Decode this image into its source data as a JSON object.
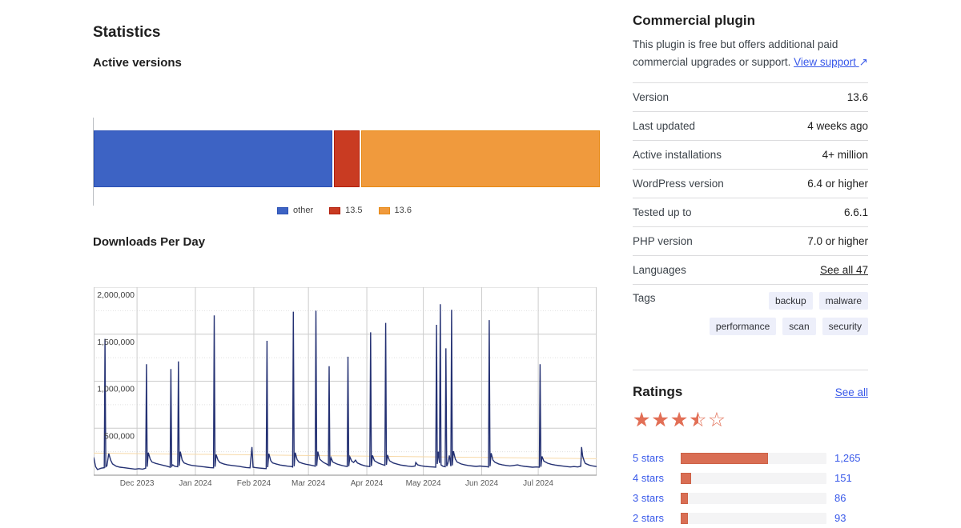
{
  "stats": {
    "title": "Statistics",
    "active_versions_title": "Active versions",
    "downloads_title": "Downloads Per Day"
  },
  "chart_data": [
    {
      "type": "bar",
      "variant": "stacked-horizontal",
      "title": "Active versions",
      "legend_position": "bottom-center",
      "segments": [
        {
          "label": "other",
          "percent": 47.5,
          "color": "#3d63c4",
          "border": "#2b51b4"
        },
        {
          "label": "13.5",
          "percent": 5.0,
          "color": "#c93b22",
          "border": "#b21e0b"
        },
        {
          "label": "13.6",
          "percent": 47.5,
          "color": "#f09a3d",
          "border": "#e78913"
        }
      ]
    },
    {
      "type": "line",
      "title": "Downloads Per Day",
      "ylim": [
        0,
        2000000
      ],
      "grid": true,
      "y_ticks": [
        {
          "value": 2000000,
          "label": "2,000,000"
        },
        {
          "value": 1500000,
          "label": "1,500,000"
        },
        {
          "value": 1000000,
          "label": "1,000,000"
        },
        {
          "value": 500000,
          "label": "500,000"
        }
      ],
      "y_minor_ticks": [
        250000,
        750000,
        1250000,
        1750000
      ],
      "x_domain_days": [
        0,
        267
      ],
      "x_ticks": [
        {
          "day": 23,
          "label": "Dec 2023"
        },
        {
          "day": 54,
          "label": "Jan 2024"
        },
        {
          "day": 85,
          "label": "Feb 2024"
        },
        {
          "day": 114,
          "label": "Mar 2024"
        },
        {
          "day": 145,
          "label": "Apr 2024"
        },
        {
          "day": 175,
          "label": "May 2024"
        },
        {
          "day": 206,
          "label": "Jun 2024"
        },
        {
          "day": 236,
          "label": "Jul 2024"
        }
      ],
      "series": [
        {
          "name": "downloads",
          "color": "#243173",
          "points": [
            [
              0,
              190000
            ],
            [
              1,
              90000
            ],
            [
              2,
              60000
            ],
            [
              4,
              75000
            ],
            [
              5.6,
              80000
            ],
            [
              6,
              1450000
            ],
            [
              6.4,
              90000
            ],
            [
              7,
              100000
            ],
            [
              8,
              230000
            ],
            [
              9,
              160000
            ],
            [
              10,
              120000
            ],
            [
              12,
              95000
            ],
            [
              14,
              85000
            ],
            [
              16,
              80000
            ],
            [
              18,
              75000
            ],
            [
              20,
              70000
            ],
            [
              22,
              65000
            ],
            [
              24,
              70000
            ],
            [
              26,
              65000
            ],
            [
              27.6,
              75000
            ],
            [
              28,
              1180000
            ],
            [
              28.4,
              90000
            ],
            [
              29,
              240000
            ],
            [
              30,
              170000
            ],
            [
              31,
              140000
            ],
            [
              33,
              125000
            ],
            [
              35,
              115000
            ],
            [
              37,
              105000
            ],
            [
              39,
              95000
            ],
            [
              40.6,
              85000
            ],
            [
              41,
              1130000
            ],
            [
              41.4,
              95000
            ],
            [
              42,
              110000
            ],
            [
              43,
              95000
            ],
            [
              44.6,
              90000
            ],
            [
              45,
              1210000
            ],
            [
              45.4,
              100000
            ],
            [
              46,
              250000
            ],
            [
              47,
              160000
            ],
            [
              48,
              130000
            ],
            [
              50,
              115000
            ],
            [
              52,
              105000
            ],
            [
              54,
              100000
            ],
            [
              56,
              95000
            ],
            [
              58,
              90000
            ],
            [
              60,
              85000
            ],
            [
              62,
              80000
            ],
            [
              63.6,
              78000
            ],
            [
              64,
              1700000
            ],
            [
              64.4,
              90000
            ],
            [
              65,
              220000
            ],
            [
              66,
              160000
            ],
            [
              67,
              135000
            ],
            [
              69,
              120000
            ],
            [
              71,
              110000
            ],
            [
              73,
              105000
            ],
            [
              75,
              100000
            ],
            [
              77,
              95000
            ],
            [
              79,
              88000
            ],
            [
              81,
              82000
            ],
            [
              83,
              78000
            ],
            [
              84,
              300000
            ],
            [
              84.6,
              85000
            ],
            [
              86,
              80000
            ],
            [
              88,
              76000
            ],
            [
              90,
              72000
            ],
            [
              91.6,
              70000
            ],
            [
              92,
              1430000
            ],
            [
              92.4,
              85000
            ],
            [
              93,
              230000
            ],
            [
              94,
              155000
            ],
            [
              95,
              130000
            ],
            [
              97,
              118000
            ],
            [
              99,
              108000
            ],
            [
              101,
              102000
            ],
            [
              103,
              96000
            ],
            [
              105,
              92000
            ],
            [
              105.6,
              88000
            ],
            [
              106,
              1740000
            ],
            [
              106.4,
              95000
            ],
            [
              107,
              240000
            ],
            [
              108,
              165000
            ],
            [
              109,
              140000
            ],
            [
              111,
              125000
            ],
            [
              113,
              115000
            ],
            [
              115,
              108000
            ],
            [
              117,
              100000
            ],
            [
              117.6,
              95000
            ],
            [
              118,
              1750000
            ],
            [
              118.4,
              100000
            ],
            [
              119,
              250000
            ],
            [
              120,
              170000
            ],
            [
              122,
              135000
            ],
            [
              124,
              115000
            ],
            [
              124.6,
              105000
            ],
            [
              125,
              1160000
            ],
            [
              125.4,
              95000
            ],
            [
              126,
              185000
            ],
            [
              127,
              140000
            ],
            [
              129,
              120000
            ],
            [
              131,
              108000
            ],
            [
              133,
              98000
            ],
            [
              134.6,
              92000
            ],
            [
              135,
              1260000
            ],
            [
              135.4,
              95000
            ],
            [
              136,
              195000
            ],
            [
              137,
              150000
            ],
            [
              138,
              135000
            ],
            [
              139,
              160000
            ],
            [
              140,
              130000
            ],
            [
              142,
              112000
            ],
            [
              144,
              100000
            ],
            [
              146.6,
              92000
            ],
            [
              147,
              1520000
            ],
            [
              147.4,
              98000
            ],
            [
              148,
              210000
            ],
            [
              149,
              155000
            ],
            [
              151,
              130000
            ],
            [
              153,
              115000
            ],
            [
              154.6,
              105000
            ],
            [
              155,
              1620000
            ],
            [
              155.4,
              110000
            ],
            [
              156,
              215000
            ],
            [
              157,
              155000
            ],
            [
              159,
              130000
            ],
            [
              161,
              118000
            ],
            [
              163,
              108000
            ],
            [
              165,
              102000
            ],
            [
              167,
              96000
            ],
            [
              169,
              92000
            ],
            [
              170.6,
              98000
            ],
            [
              171,
              135000
            ],
            [
              172,
              110000
            ],
            [
              174,
              100000
            ],
            [
              176,
              94000
            ],
            [
              178,
              90000
            ],
            [
              180,
              88000
            ],
            [
              181.6,
              85000
            ],
            [
              182,
              1600000
            ],
            [
              182.4,
              120000
            ],
            [
              183,
              250000
            ],
            [
              183.6,
              130000
            ],
            [
              184,
              1820000
            ],
            [
              184.4,
              110000
            ],
            [
              185.4,
              95000
            ],
            [
              186.6,
              90000
            ],
            [
              187,
              1350000
            ],
            [
              187.4,
              95000
            ],
            [
              188,
              125000
            ],
            [
              188.8,
              210000
            ],
            [
              189.6,
              95000
            ],
            [
              190,
              1760000
            ],
            [
              190.4,
              105000
            ],
            [
              191,
              255000
            ],
            [
              192,
              170000
            ],
            [
              193,
              140000
            ],
            [
              195,
              120000
            ],
            [
              197,
              110000
            ],
            [
              199,
              103000
            ],
            [
              201,
              98000
            ],
            [
              203,
              94000
            ],
            [
              205,
              98000
            ],
            [
              207,
              94000
            ],
            [
              209,
              90000
            ],
            [
              209.6,
              88000
            ],
            [
              210,
              1650000
            ],
            [
              210.4,
              95000
            ],
            [
              211,
              235000
            ],
            [
              212,
              160000
            ],
            [
              213,
              138000
            ],
            [
              215,
              120000
            ],
            [
              217,
              110000
            ],
            [
              219,
              104000
            ],
            [
              221,
              99000
            ],
            [
              223,
              104000
            ],
            [
              225,
              110000
            ],
            [
              227,
              100000
            ],
            [
              229,
              94000
            ],
            [
              231,
              89000
            ],
            [
              233,
              85000
            ],
            [
              235,
              88000
            ],
            [
              236.6,
              85000
            ],
            [
              237,
              1180000
            ],
            [
              237.4,
              90000
            ],
            [
              238,
              200000
            ],
            [
              239,
              150000
            ],
            [
              241,
              128000
            ],
            [
              243,
              116000
            ],
            [
              245,
              108000
            ],
            [
              247,
              102000
            ],
            [
              249,
              97000
            ],
            [
              251,
              92000
            ],
            [
              253,
              88000
            ],
            [
              255,
              92000
            ],
            [
              257,
              88000
            ],
            [
              258.6,
              95000
            ],
            [
              259,
              300000
            ],
            [
              259.6,
              200000
            ],
            [
              260.4,
              150000
            ],
            [
              261,
              125000
            ],
            [
              263,
              108000
            ],
            [
              265,
              98000
            ],
            [
              267,
              92000
            ]
          ]
        },
        {
          "name": "trend",
          "color": "#f7d9a8",
          "points": [
            [
              0,
              235000
            ],
            [
              267,
              175000
            ]
          ]
        }
      ]
    }
  ],
  "sidebar": {
    "commercial": {
      "title": "Commercial plugin",
      "text": "This plugin is free but offers additional paid commercial upgrades or support. ",
      "link_label": "View support",
      "link_arrow": "↗"
    },
    "details": {
      "rows": [
        {
          "label": "Version",
          "value": "13.6"
        },
        {
          "label": "Last updated",
          "value": "4 weeks ago"
        },
        {
          "label": "Active installations",
          "value": "4+ million"
        },
        {
          "label": "WordPress version",
          "value": "6.4 or higher"
        },
        {
          "label": "Tested up to",
          "value": "6.6.1"
        },
        {
          "label": "PHP version",
          "value": "7.0 or higher"
        },
        {
          "label": "Languages",
          "value": "See all 47",
          "is_link": true
        }
      ],
      "tags_label": "Tags",
      "tag_rows": [
        [
          "backup",
          "malware"
        ],
        [
          "performance",
          "scan",
          "security"
        ]
      ]
    },
    "ratings": {
      "heading": "Ratings",
      "see_all": "See all",
      "stars_out_of_5": 3.5,
      "rows": [
        {
          "label": "5 stars",
          "count": "1,265",
          "percent": 60
        },
        {
          "label": "4 stars",
          "count": "151",
          "percent": 7
        },
        {
          "label": "3 stars",
          "count": "86",
          "percent": 5
        },
        {
          "label": "2 stars",
          "count": "93",
          "percent": 5
        }
      ]
    }
  },
  "colors": {
    "link": "#3858e9",
    "star": "#e26f56",
    "rating_bar_fill": "#d96e54",
    "rating_bar_track": "#f4f4f5",
    "grid": "#cccccc",
    "divider": "#dcdcde"
  }
}
